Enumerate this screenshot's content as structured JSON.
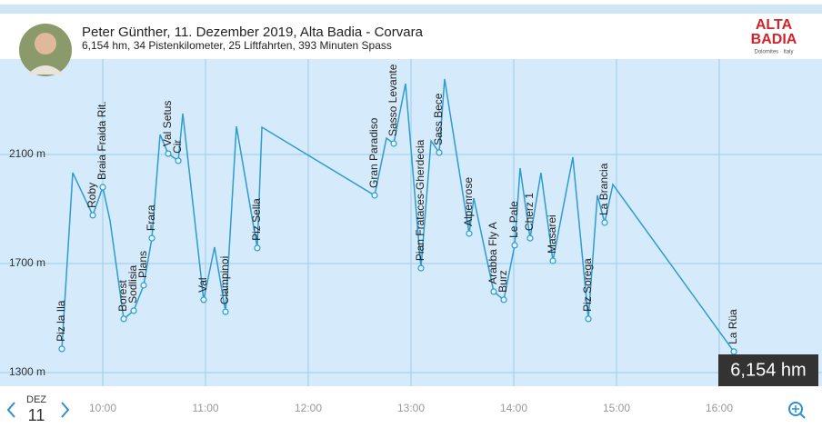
{
  "header": {
    "title": "Peter Günther, 11. Dezember 2019, Alta Badia - Corvara",
    "subtitle": "6,154 hm, 34 Pistenkilometer, 25 Liftfahrten, 393 Minuten Spass",
    "logo": [
      "ALTA",
      "BADIA",
      "Dolomites · Italy"
    ]
  },
  "chart_data": {
    "type": "line",
    "x": [
      9.602,
      9.708,
      9.903,
      10.0,
      10.071,
      10.204,
      10.301,
      10.398,
      10.478,
      10.558,
      10.637,
      10.735,
      10.779,
      10.982,
      11.088,
      11.195,
      11.301,
      11.504,
      11.549,
      12.646,
      12.761,
      12.832,
      12.947,
      13.097,
      13.195,
      13.274,
      13.327,
      13.566,
      13.611,
      13.805,
      13.903,
      14.009,
      14.062,
      14.159,
      14.265,
      14.381,
      14.575,
      14.726,
      14.814,
      14.885,
      14.965,
      16.142
    ],
    "series": [
      {
        "color": "#2e9bd1",
        "values": [
          1387,
          2033,
          1877,
          1980,
          1857,
          1497,
          1527,
          1620,
          1793,
          2173,
          2103,
          2077,
          2250,
          1567,
          1760,
          1523,
          2203,
          1757,
          2200,
          1950,
          2160,
          2140,
          2360,
          1683,
          2150,
          2107,
          2377,
          1810,
          1940,
          1597,
          1567,
          1767,
          2050,
          1793,
          2033,
          1710,
          2090,
          1497,
          1950,
          1850,
          1990,
          1377
        ],
        "labels": [
          "Piz la Ila",
          null,
          "Roby",
          "Braia Fraida Rit.",
          null,
          "Borest",
          "Sodlisia",
          "Plans",
          "Frara",
          null,
          "Val Setus",
          "Cir",
          null,
          "Val",
          null,
          "Ciampinoi",
          null,
          "Piz Sella",
          null,
          "Gran Paradiso",
          null,
          "Sasso Levante",
          null,
          "Pian Frataces-Gherdecia",
          null,
          "Sass Bece",
          null,
          "Alpenrose",
          null,
          "Arabba Fly A",
          "Burz",
          "Le Pale",
          null,
          "Cherz 1",
          null,
          "Masarei",
          null,
          "Piz Sorega",
          null,
          "La Brancia",
          null,
          "La Rüa"
        ]
      }
    ],
    "xlim": [
      9,
      17
    ],
    "ylim": [
      1250,
      2450
    ],
    "xticks": [
      {
        "value": 10,
        "label": "10:00"
      },
      {
        "value": 11,
        "label": "11:00"
      },
      {
        "value": 12,
        "label": "12:00"
      },
      {
        "value": 13,
        "label": "13:00"
      },
      {
        "value": 14,
        "label": "14:00"
      },
      {
        "value": 15,
        "label": "15:00"
      },
      {
        "value": 16,
        "label": "16:00"
      }
    ],
    "yticks": [
      {
        "value": 1300,
        "label": "1300 m"
      },
      {
        "value": 1700,
        "label": "1700 m"
      },
      {
        "value": 2100,
        "label": "2100 m"
      }
    ],
    "grid": true,
    "badge": "6,154 hm"
  },
  "footer": {
    "month": "DEZ",
    "day": "11"
  }
}
